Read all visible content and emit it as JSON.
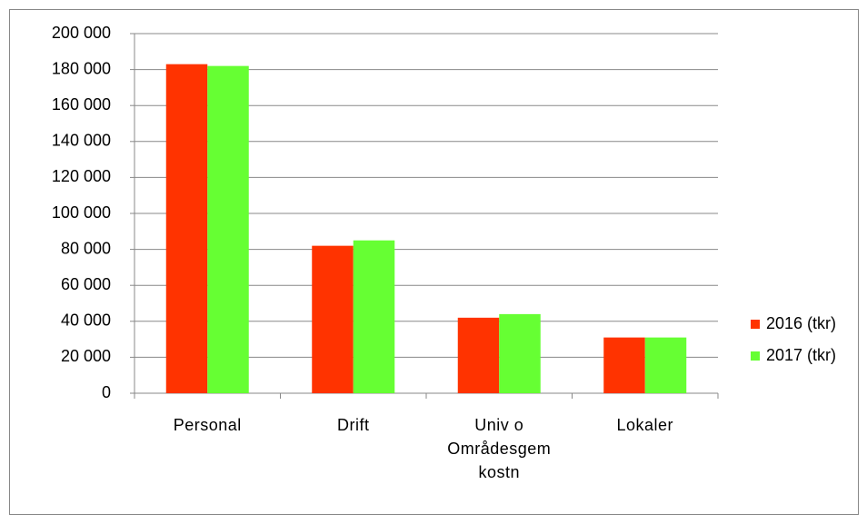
{
  "chart_data": {
    "type": "bar",
    "categories": [
      "Personal",
      "Drift",
      "Univ o\nOmrådesgem\nkostn",
      "Lokaler"
    ],
    "series": [
      {
        "name": "2016 (tkr)",
        "color": "#ff3300",
        "values": [
          183000,
          82000,
          42000,
          31000
        ]
      },
      {
        "name": "2017 (tkr)",
        "color": "#66ff33",
        "values": [
          182000,
          85000,
          44000,
          31000
        ]
      }
    ],
    "ylim": [
      0,
      200000
    ],
    "yticks": [
      0,
      {
        "value": 20000,
        "label": "20 000"
      },
      {
        "value": 40000,
        "label": "40 000"
      },
      {
        "value": 60000,
        "label": "60 000"
      },
      {
        "value": 80000,
        "label": "80 000"
      },
      {
        "value": 100000,
        "label": "100 000"
      },
      {
        "value": 120000,
        "label": "120 000"
      },
      {
        "value": 140000,
        "label": "140 000"
      },
      {
        "value": 160000,
        "label": "160 000"
      },
      {
        "value": 180000,
        "label": "180 000"
      },
      {
        "value": 200000,
        "label": "200 000"
      }
    ],
    "grid": true,
    "legend": "right"
  }
}
